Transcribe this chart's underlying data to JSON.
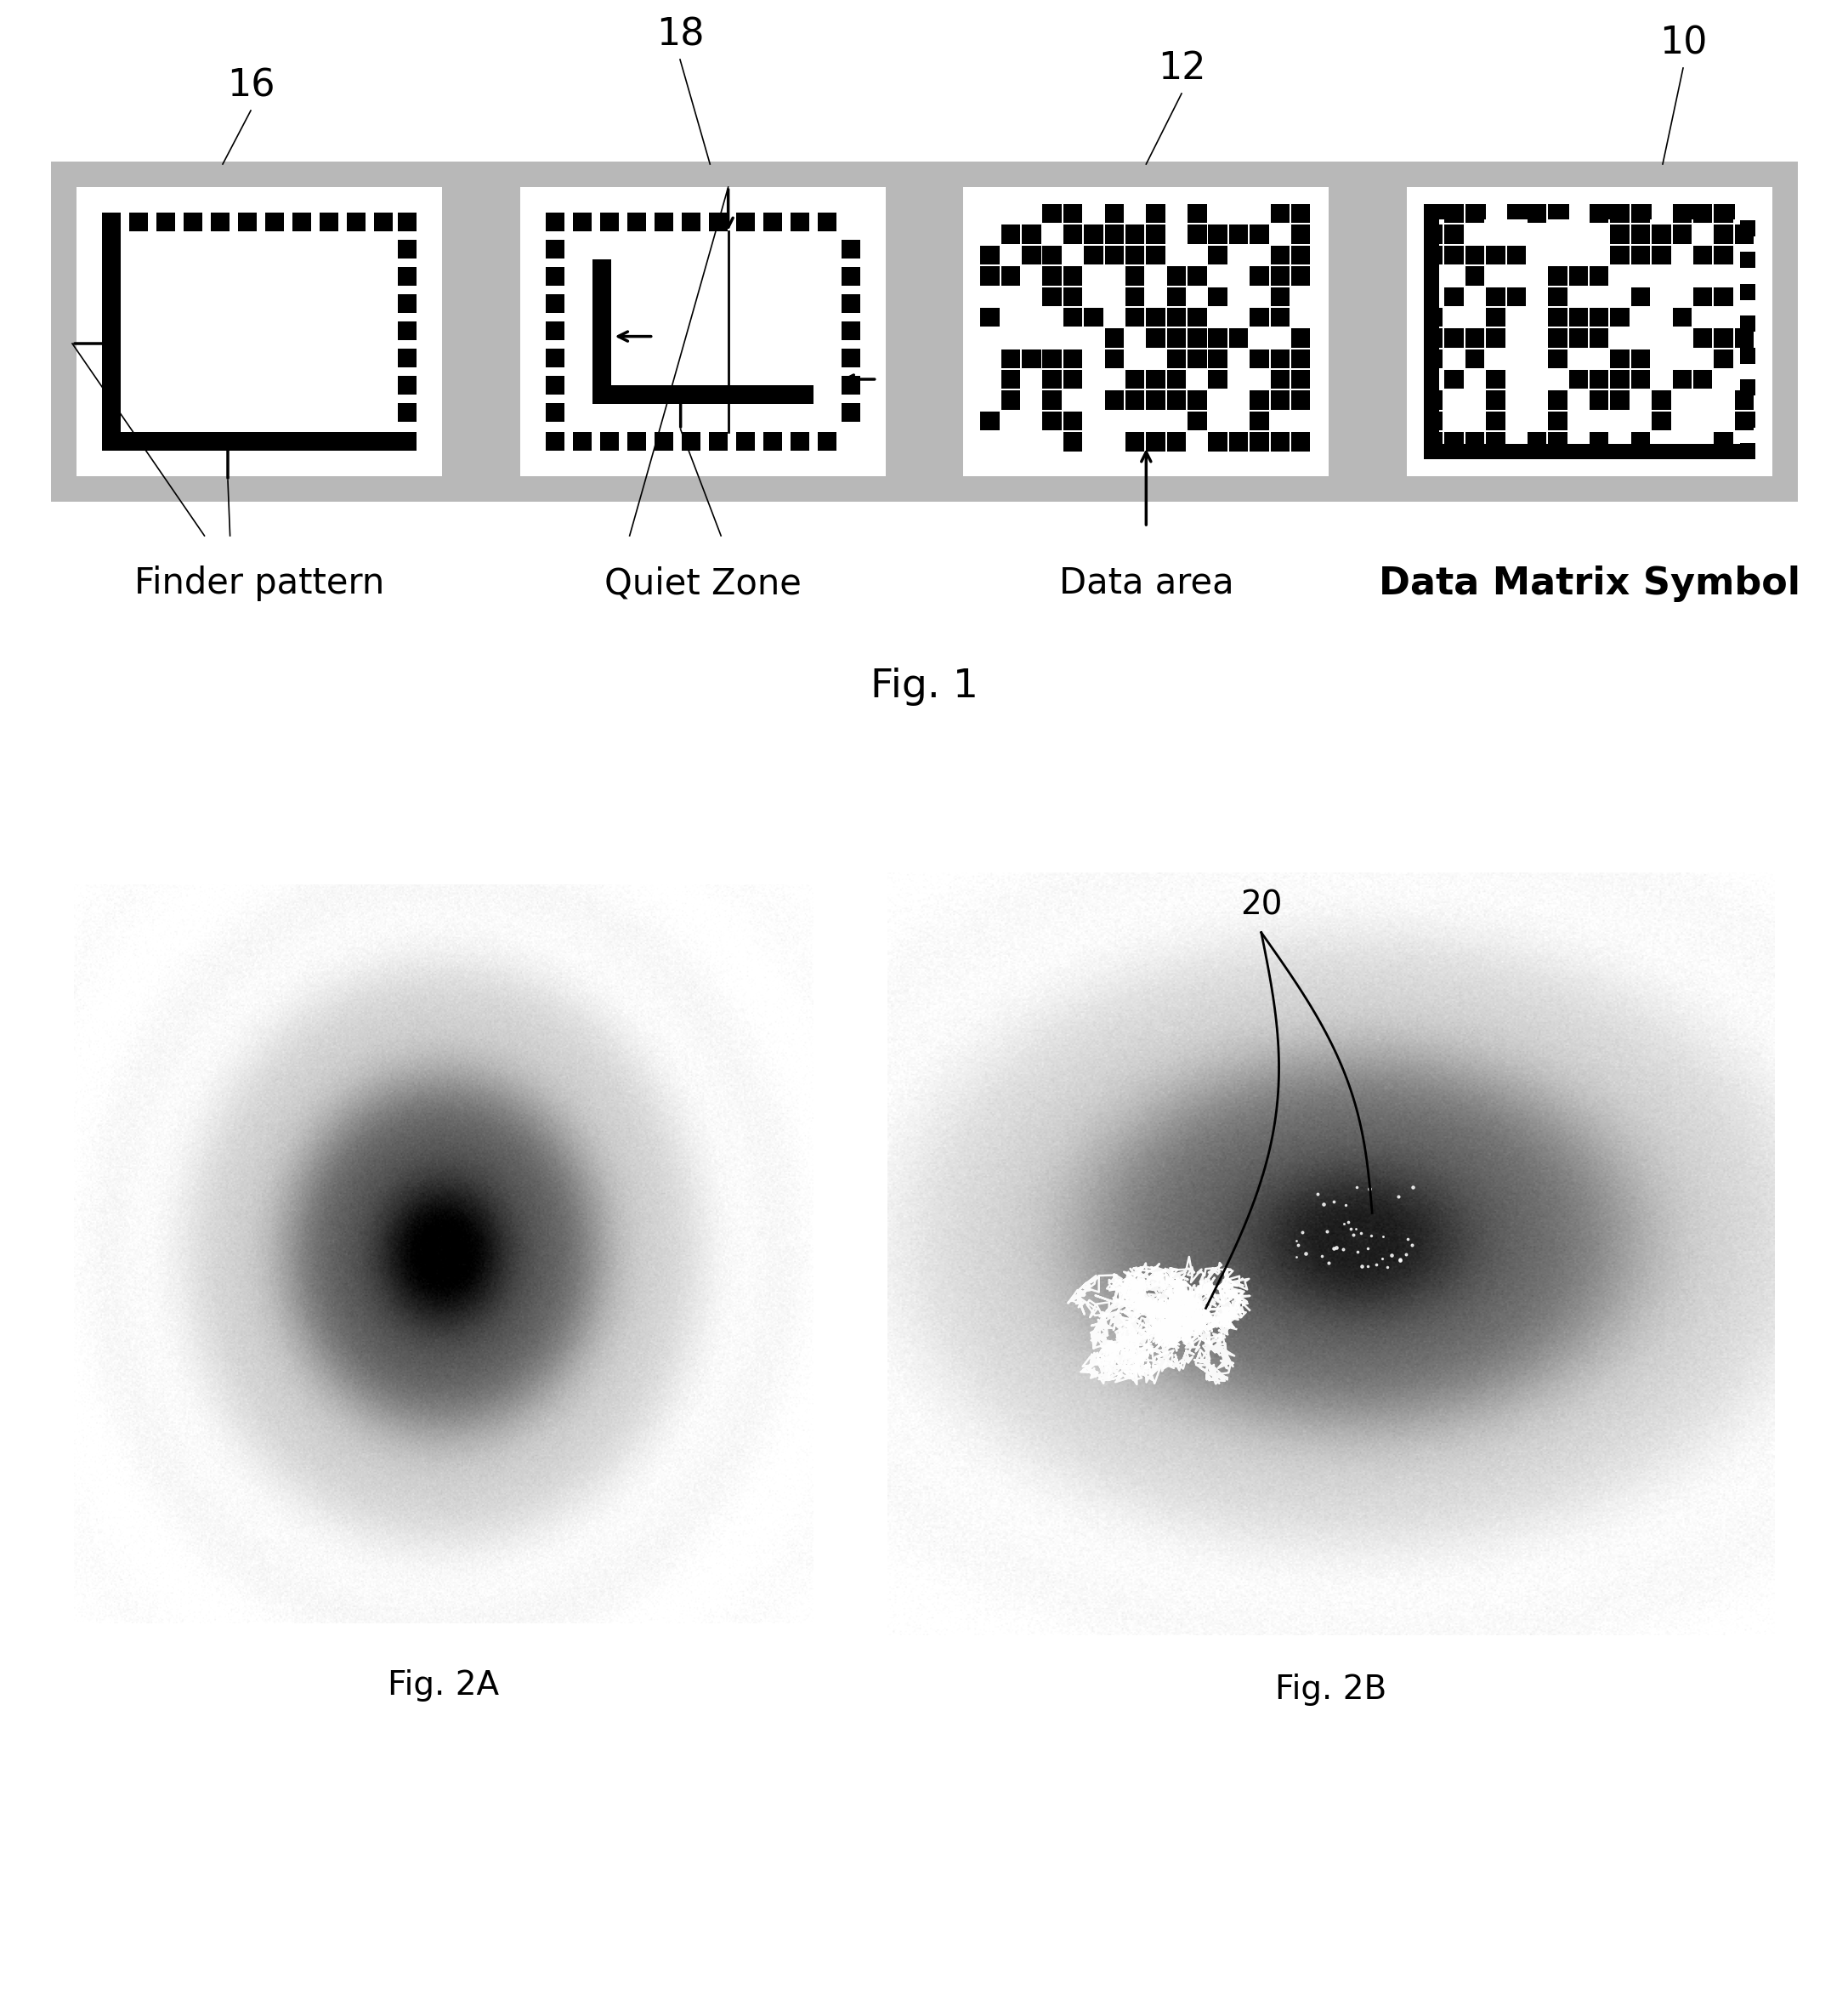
{
  "fig1_label": "Fig. 1",
  "fig2a_label": "Fig. 2A",
  "fig2b_label": "Fig. 2B",
  "label_16": "16",
  "label_18": "18",
  "label_12": "12",
  "label_10": "10",
  "label_20": "20",
  "text_finder": "Finder pattern",
  "text_quiet": "Quiet Zone",
  "text_data": "Data area",
  "text_dms": "Data Matrix Symbol",
  "bg_color": "#ffffff",
  "bar_bg_color": "#b8b8b8",
  "panel_bg_color": "#ffffff"
}
